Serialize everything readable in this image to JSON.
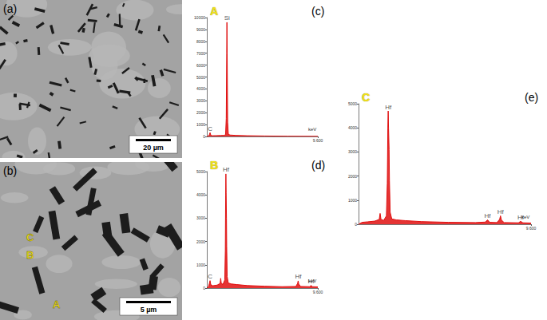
{
  "figure": {
    "images": [
      {
        "panel": "(a)",
        "scale_bar": "20 µm"
      },
      {
        "panel": "(b)",
        "scale_bar": "5 µm",
        "points": [
          "C",
          "B",
          "A"
        ]
      }
    ]
  },
  "chart_data": [
    {
      "type": "line",
      "panel": "(c)",
      "point": "A",
      "x_label": "keV",
      "color": "#e01010",
      "grid": false,
      "xlim": [
        0,
        9.6
      ],
      "xticks": [
        {
          "value": 9.6,
          "label": "9.600"
        }
      ],
      "ylim": [
        0,
        10000
      ],
      "yticks": [
        0,
        1000,
        2000,
        3000,
        4000,
        5000,
        6000,
        7000,
        8000,
        9000,
        10000
      ],
      "x": [
        0,
        0.15,
        0.22,
        0.28,
        0.34,
        0.42,
        0.8,
        1.2,
        1.5,
        1.62,
        1.68,
        1.72,
        1.74,
        1.76,
        1.8,
        1.86,
        2.0,
        2.5,
        3.5,
        5,
        7,
        9.6
      ],
      "values": [
        0,
        40,
        150,
        320,
        120,
        60,
        70,
        80,
        90,
        150,
        1500,
        7000,
        9600,
        7000,
        1200,
        200,
        120,
        90,
        60,
        40,
        20,
        10
      ],
      "annotations": [
        {
          "text": "C",
          "x": 0.28,
          "y": 320
        },
        {
          "text": "Si",
          "x": 1.74,
          "y": 9600
        }
      ]
    },
    {
      "type": "line",
      "panel": "(d)",
      "point": "B",
      "x_label": "keV",
      "color": "#e01010",
      "grid": false,
      "xlim": [
        0,
        9.6
      ],
      "xticks": [
        {
          "value": 9.6,
          "label": "9.600"
        }
      ],
      "ylim": [
        0,
        5000
      ],
      "yticks": [
        0,
        1000,
        2000,
        3000,
        4000,
        5000
      ],
      "x": [
        0,
        0.15,
        0.22,
        0.28,
        0.34,
        0.5,
        0.9,
        1.15,
        1.2,
        1.25,
        1.4,
        1.55,
        1.6,
        1.63,
        1.65,
        1.67,
        1.7,
        1.72,
        1.76,
        1.85,
        2.1,
        2.6,
        3.5,
        5,
        6.5,
        7.7,
        7.85,
        7.9,
        7.95,
        8.1,
        8.9,
        9.02,
        9.15,
        9.6
      ],
      "values": [
        0,
        60,
        200,
        320,
        150,
        100,
        130,
        200,
        420,
        200,
        160,
        350,
        1600,
        4000,
        4900,
        4100,
        3000,
        1800,
        500,
        220,
        180,
        150,
        110,
        80,
        60,
        70,
        200,
        310,
        180,
        70,
        60,
        110,
        60,
        50
      ],
      "annotations": [
        {
          "text": "C",
          "x": 0.28,
          "y": 320
        },
        {
          "text": "Hf",
          "x": 1.65,
          "y": 4900
        },
        {
          "text": "Hf",
          "x": 7.9,
          "y": 310
        },
        {
          "text": "Hf",
          "x": 9.02,
          "y": 110
        }
      ]
    },
    {
      "type": "line",
      "panel": "(e)",
      "point": "C",
      "x_label": "keV",
      "color": "#e01010",
      "grid": false,
      "xlim": [
        0,
        9.6
      ],
      "xticks": [
        {
          "value": 9.6,
          "label": "9.600"
        }
      ],
      "ylim": [
        0,
        5000
      ],
      "yticks": [
        0,
        1000,
        2000,
        3000,
        4000,
        5000
      ],
      "x": [
        0,
        0.2,
        0.5,
        0.9,
        1.15,
        1.2,
        1.25,
        1.4,
        1.55,
        1.6,
        1.63,
        1.65,
        1.67,
        1.7,
        1.72,
        1.76,
        1.85,
        2.1,
        2.6,
        3.5,
        5,
        6.5,
        7.05,
        7.18,
        7.3,
        7.7,
        7.85,
        7.9,
        7.95,
        8.1,
        8.9,
        9.02,
        9.15,
        9.6
      ],
      "values": [
        0,
        80,
        100,
        130,
        200,
        450,
        200,
        160,
        350,
        1700,
        4000,
        4700,
        4000,
        3100,
        1800,
        500,
        220,
        180,
        150,
        110,
        80,
        70,
        90,
        180,
        80,
        70,
        200,
        350,
        180,
        70,
        60,
        120,
        60,
        50
      ],
      "annotations": [
        {
          "text": "Hf",
          "x": 1.65,
          "y": 4700
        },
        {
          "text": "Hf",
          "x": 7.18,
          "y": 180
        },
        {
          "text": "Hf",
          "x": 7.9,
          "y": 350
        },
        {
          "text": "Hf",
          "x": 9.02,
          "y": 120
        }
      ]
    }
  ]
}
